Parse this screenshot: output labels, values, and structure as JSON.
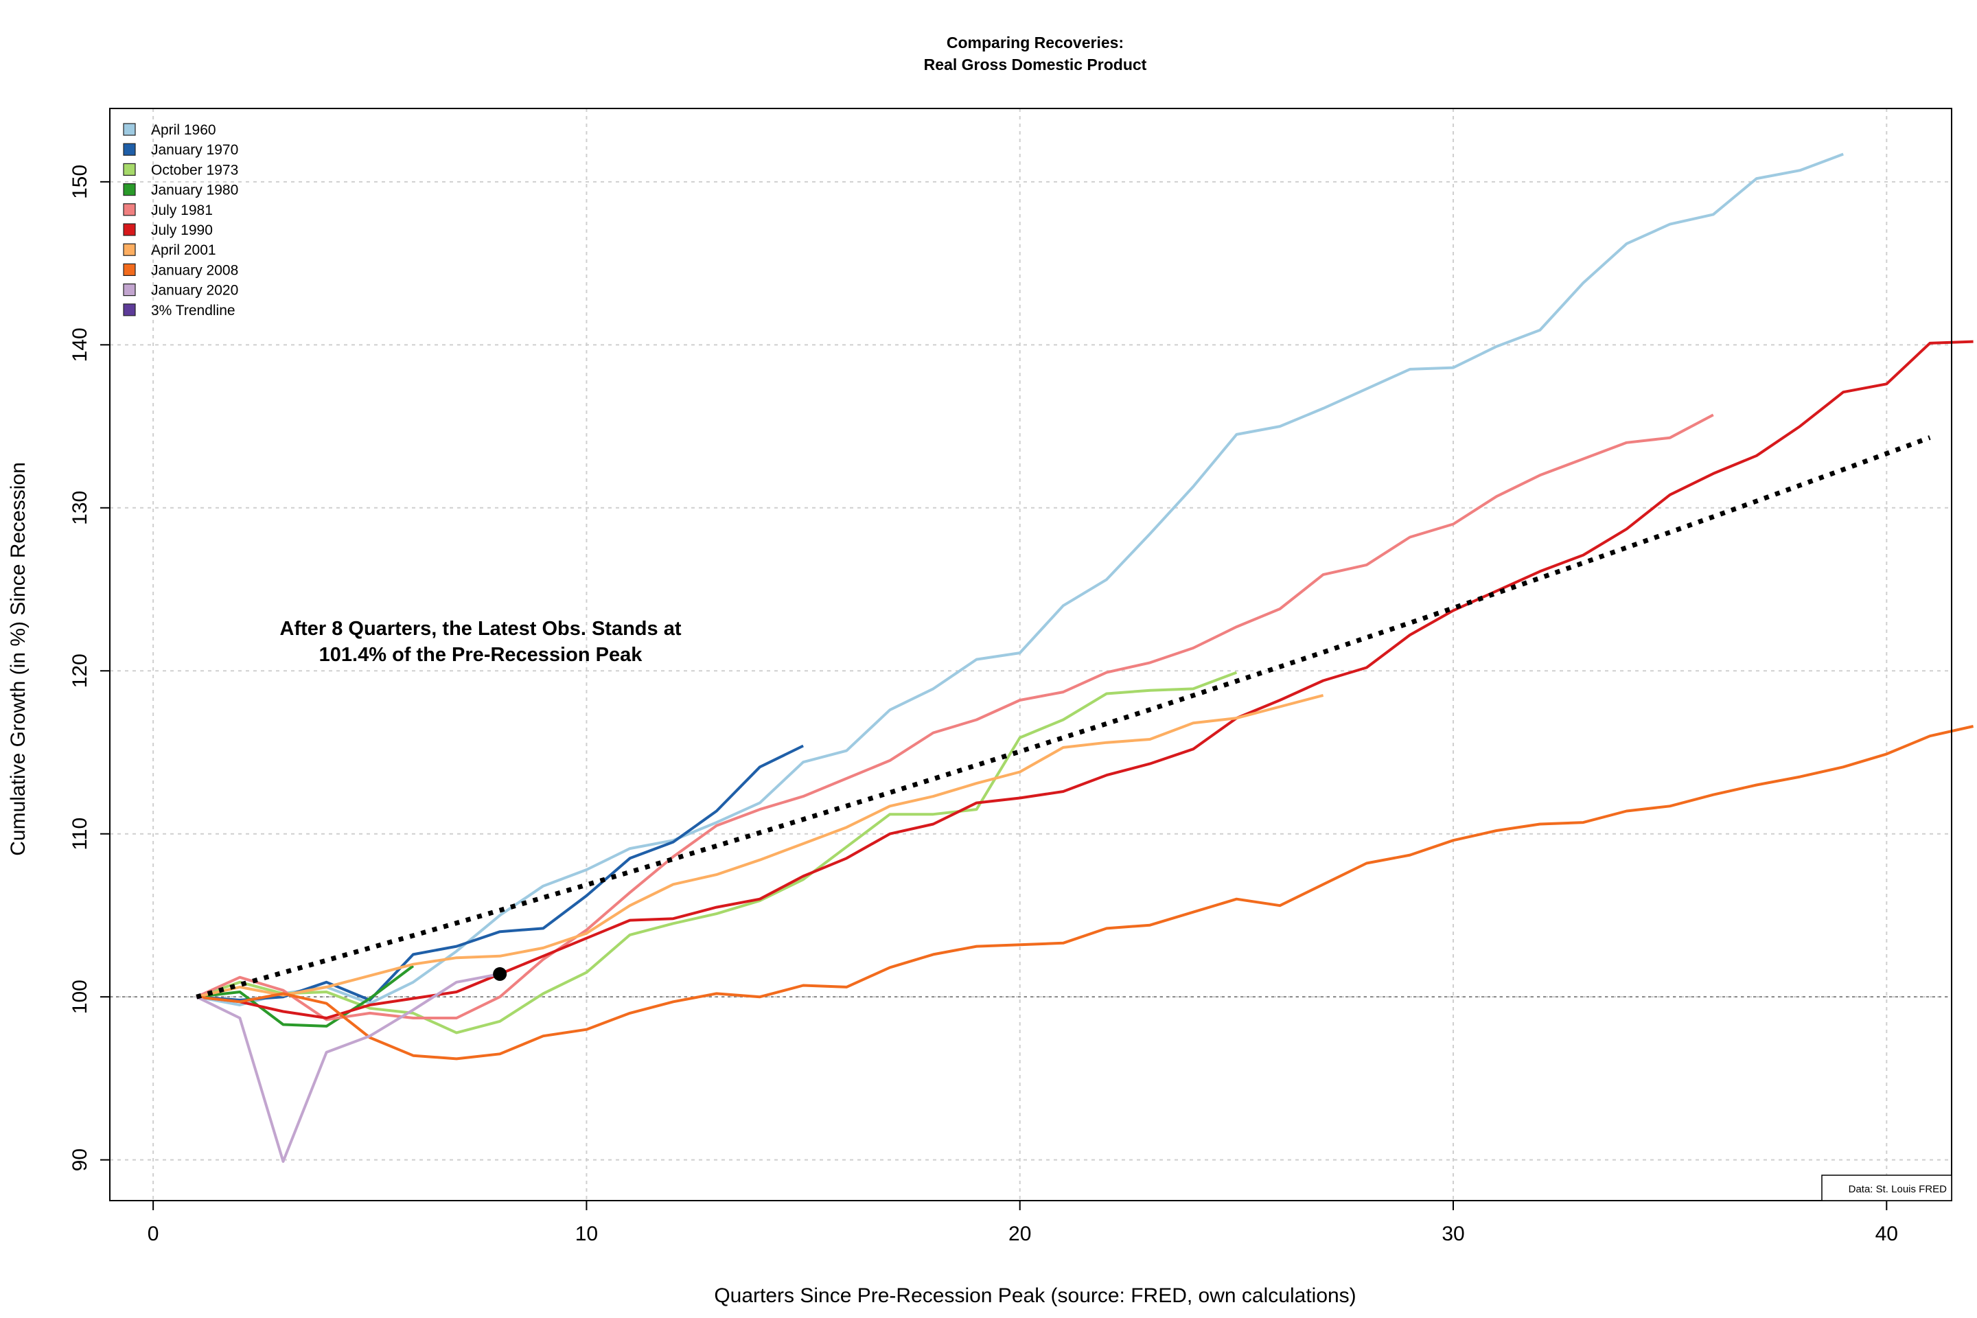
{
  "chart_data": {
    "type": "line",
    "title": "Comparing Recoveries:",
    "subtitle": "Real Gross Domestic Product",
    "xlabel": "Quarters Since Pre-Recession Peak (source: FRED, own calculations)",
    "ylabel": "Cumulative Growth (in %) Since Recession",
    "xlim": [
      -1,
      41.5
    ],
    "ylim": [
      87.5,
      154.5
    ],
    "xticks": [
      0,
      10,
      20,
      30,
      40
    ],
    "yticks": [
      90,
      100,
      110,
      120,
      130,
      140,
      150
    ],
    "grid": true,
    "legend_position": "top-left",
    "reference_line": 100,
    "annotation": {
      "lines": [
        "After 8 Quarters, the Latest Obs. Stands at",
        "101.4% of the Pre-Recession Peak"
      ],
      "point": {
        "x": 8,
        "y": 101.4
      }
    },
    "source_note": "Data: St. Louis FRED",
    "series": [
      {
        "name": "April 1960",
        "color": "#9ecae1",
        "x_start": 1,
        "values": [
          100,
          99.5,
          100.2,
          100.6,
          99.6,
          100.9,
          102.8,
          105.0,
          106.8,
          107.8,
          109.1,
          109.6,
          110.7,
          111.9,
          114.4,
          115.1,
          117.6,
          118.9,
          120.7,
          121.1,
          124.0,
          125.6,
          128.4,
          131.3,
          134.5,
          135.0,
          136.1,
          137.3,
          138.5,
          138.6,
          139.9,
          140.9,
          143.8,
          146.2,
          147.4,
          148.0,
          150.2,
          150.7,
          151.7
        ]
      },
      {
        "name": "January 1970",
        "color": "#1f5fa8",
        "x_start": 1,
        "values": [
          100,
          99.8,
          100.0,
          100.9,
          99.8,
          102.6,
          103.1,
          104.0,
          104.2,
          106.2,
          108.5,
          109.5,
          111.4,
          114.1,
          115.4
        ]
      },
      {
        "name": "October 1973",
        "color": "#a6d96a",
        "x_start": 1,
        "values": [
          100,
          100.9,
          100.2,
          100.3,
          99.3,
          99.0,
          97.8,
          98.5,
          100.2,
          101.5,
          103.8,
          104.5,
          105.1,
          105.9,
          107.2,
          109.2,
          111.2,
          111.2,
          111.5,
          115.9,
          117.0,
          118.6,
          118.8,
          118.9,
          119.9
        ]
      },
      {
        "name": "January 1980",
        "color": "#2a9a2a",
        "x_start": 1,
        "values": [
          100,
          100.3,
          98.3,
          98.2,
          99.9,
          101.9
        ]
      },
      {
        "name": "July 1981",
        "color": "#f08080",
        "x_start": 1,
        "values": [
          100,
          101.2,
          100.4,
          98.6,
          99.0,
          98.7,
          98.7,
          100.0,
          102.3,
          104.1,
          106.4,
          108.6,
          110.5,
          111.5,
          112.3,
          113.4,
          114.5,
          116.2,
          117.0,
          118.2,
          118.7,
          119.9,
          120.5,
          121.4,
          122.7,
          123.8,
          125.9,
          126.5,
          128.2,
          129.0,
          130.7,
          132.0,
          133.0,
          134.0,
          134.3,
          135.7
        ]
      },
      {
        "name": "July 1990",
        "color": "#d7191c",
        "x_start": 1,
        "values": [
          100,
          99.7,
          99.1,
          98.7,
          99.5,
          99.9,
          100.3,
          101.4,
          102.5,
          103.6,
          104.7,
          104.8,
          105.5,
          106.0,
          107.4,
          108.5,
          110.0,
          110.6,
          111.9,
          112.2,
          112.6,
          113.6,
          114.3,
          115.2,
          117.1,
          118.2,
          119.4,
          120.2,
          122.2,
          123.7,
          124.9,
          126.1,
          127.1,
          128.7,
          130.8,
          132.1,
          133.2,
          135.0,
          137.1,
          137.6,
          140.1,
          140.2
        ]
      },
      {
        "name": "April 2001",
        "color": "#fdae61",
        "x_start": 1,
        "values": [
          100,
          100.6,
          100.1,
          100.6,
          101.3,
          102.0,
          102.4,
          102.5,
          103.0,
          103.9,
          105.6,
          106.9,
          107.5,
          108.4,
          109.4,
          110.4,
          111.7,
          112.3,
          113.1,
          113.8,
          115.3,
          115.6,
          115.8,
          116.8,
          117.1,
          117.8,
          118.5
        ]
      },
      {
        "name": "January 2008",
        "color": "#f26b1d",
        "x_start": 1,
        "values": [
          100,
          99.7,
          100.2,
          99.6,
          97.5,
          96.4,
          96.2,
          96.5,
          97.6,
          98.0,
          99.0,
          99.7,
          100.2,
          100.0,
          100.7,
          100.6,
          101.8,
          102.6,
          103.1,
          103.2,
          103.3,
          104.2,
          104.4,
          105.2,
          106.0,
          105.6,
          106.9,
          108.2,
          108.7,
          109.6,
          110.2,
          110.6,
          110.7,
          111.4,
          111.7,
          112.4,
          113.0,
          113.5,
          114.1,
          114.9,
          116.0,
          116.6
        ]
      },
      {
        "name": "January 2020",
        "color": "#c2a5cf",
        "x_start": 1,
        "values": [
          100,
          98.7,
          89.9,
          96.6,
          97.6,
          99.2,
          100.9,
          101.4
        ]
      },
      {
        "name": "3% Trendline",
        "color": "#5e3c99",
        "x_start": 1,
        "dotted": true,
        "line_color": "#000000",
        "values": [
          100.0,
          100.74,
          101.49,
          102.24,
          103.0,
          103.76,
          104.53,
          105.31,
          106.09,
          106.87,
          107.66,
          108.46,
          109.26,
          110.07,
          110.89,
          111.71,
          112.53,
          113.37,
          114.21,
          115.05,
          115.9,
          116.76,
          117.62,
          118.49,
          119.37,
          120.25,
          121.14,
          122.04,
          122.94,
          123.85,
          124.77,
          125.69,
          126.62,
          127.56,
          128.5,
          129.45,
          130.41,
          131.38,
          132.35,
          133.33,
          134.31
        ]
      }
    ]
  }
}
